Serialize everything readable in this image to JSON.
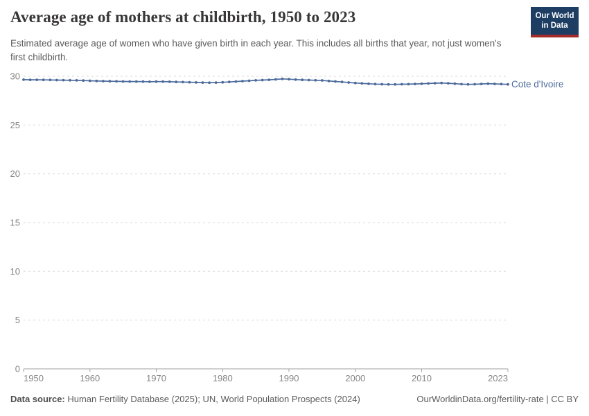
{
  "header": {
    "title": "Average age of mothers at childbirth, 1950 to 2023",
    "subtitle": "Estimated average age of women who have given birth in each year. This includes all births that year, not just women's first childbirth.",
    "logo": {
      "line1": "Our World",
      "line2": "in Data",
      "bg_color": "#1d3d63",
      "stripe_color": "#a52b29"
    }
  },
  "chart_data": {
    "type": "line",
    "title": "Average age of mothers at childbirth, 1950 to 2023",
    "xlabel": "",
    "ylabel": "",
    "xlim": [
      1950,
      2023
    ],
    "ylim": [
      0,
      30
    ],
    "x_ticks": [
      1950,
      1960,
      1970,
      1980,
      1990,
      2000,
      2010,
      2023
    ],
    "y_ticks": [
      0,
      5,
      10,
      15,
      20,
      25,
      30
    ],
    "grid": "horizontal-dashed",
    "legend_position": "end-of-line-label",
    "colors": {
      "grid": "#dadada",
      "axis": "#a1a1a1",
      "tick_text": "#858585"
    },
    "series": [
      {
        "name": "Cote d'Ivoire",
        "color": "#4c6a9c",
        "x": [
          1950,
          1951,
          1952,
          1953,
          1954,
          1955,
          1956,
          1957,
          1958,
          1959,
          1960,
          1961,
          1962,
          1963,
          1964,
          1965,
          1966,
          1967,
          1968,
          1969,
          1970,
          1971,
          1972,
          1973,
          1974,
          1975,
          1976,
          1977,
          1978,
          1979,
          1980,
          1981,
          1982,
          1983,
          1984,
          1985,
          1986,
          1987,
          1988,
          1989,
          1990,
          1991,
          1992,
          1993,
          1994,
          1995,
          1996,
          1997,
          1998,
          1999,
          2000,
          2001,
          2002,
          2003,
          2004,
          2005,
          2006,
          2007,
          2008,
          2009,
          2010,
          2011,
          2012,
          2013,
          2014,
          2015,
          2016,
          2017,
          2018,
          2019,
          2020,
          2021,
          2022,
          2023
        ],
        "values": [
          29.65,
          29.64,
          29.64,
          29.63,
          29.62,
          29.61,
          29.6,
          29.59,
          29.58,
          29.56,
          29.54,
          29.52,
          29.5,
          29.49,
          29.48,
          29.47,
          29.46,
          29.46,
          29.45,
          29.44,
          29.45,
          29.45,
          29.44,
          29.42,
          29.4,
          29.39,
          29.37,
          29.35,
          29.34,
          29.35,
          29.38,
          29.42,
          29.46,
          29.5,
          29.54,
          29.58,
          29.61,
          29.64,
          29.68,
          29.73,
          29.7,
          29.66,
          29.63,
          29.61,
          29.59,
          29.57,
          29.52,
          29.47,
          29.42,
          29.36,
          29.31,
          29.27,
          29.23,
          29.2,
          29.18,
          29.17,
          29.17,
          29.18,
          29.19,
          29.21,
          29.23,
          29.26,
          29.29,
          29.31,
          29.28,
          29.24,
          29.19,
          29.17,
          29.18,
          29.21,
          29.24,
          29.22,
          29.2,
          29.17
        ]
      }
    ]
  },
  "footer": {
    "datasource_label": "Data source:",
    "datasource_text": " Human Fertility Database (2025); UN, World Population Prospects (2024)",
    "link": "OurWorldinData.org/fertility-rate | CC BY"
  }
}
